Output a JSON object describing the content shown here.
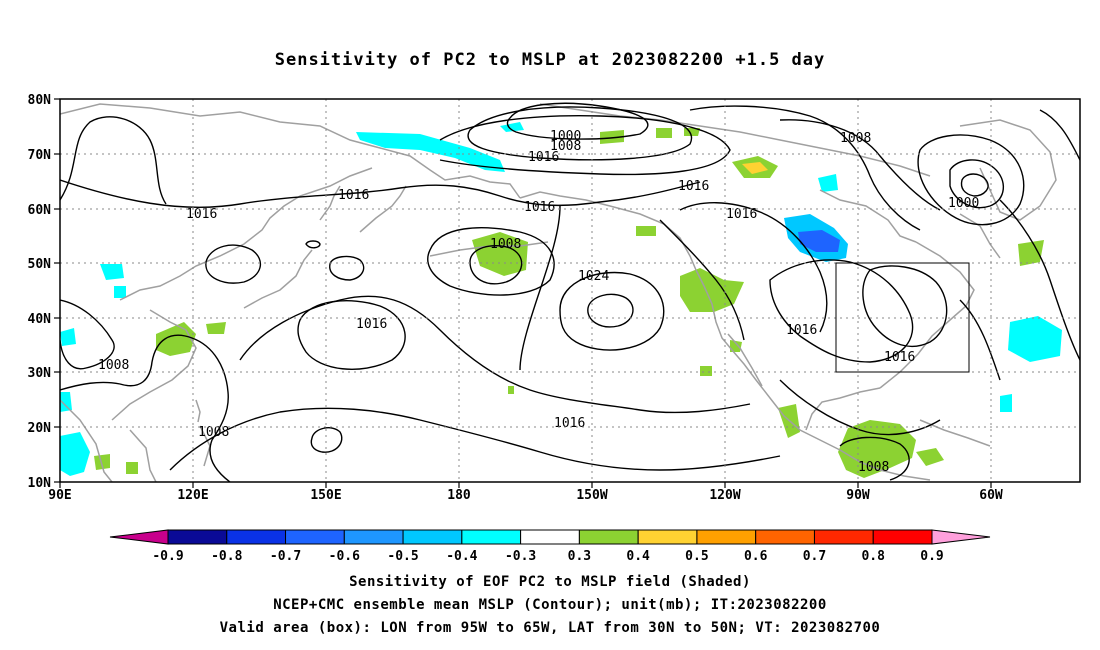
{
  "title": "Sensitivity of PC2 to MSLP at 2023082200 +1.5 day",
  "map": {
    "lat_labels": [
      "80N",
      "70N",
      "60N",
      "50N",
      "40N",
      "30N",
      "20N",
      "10N"
    ],
    "lon_labels": [
      "90E",
      "120E",
      "150E",
      "180",
      "150W",
      "120W",
      "90W",
      "60W"
    ],
    "contour_labels": [
      {
        "text": "1000"
      },
      {
        "text": "1008"
      },
      {
        "text": "1016"
      },
      {
        "text": "1008"
      },
      {
        "text": "1016"
      },
      {
        "text": "1016"
      },
      {
        "text": "1016"
      },
      {
        "text": "1016"
      },
      {
        "text": "1000"
      },
      {
        "text": "1016"
      },
      {
        "text": "1008"
      },
      {
        "text": "1024"
      },
      {
        "text": "1016"
      },
      {
        "text": "1016"
      },
      {
        "text": "1016"
      },
      {
        "text": "1008"
      },
      {
        "text": "1016"
      },
      {
        "text": "1008"
      },
      {
        "text": "1008"
      }
    ]
  },
  "colorbar": {
    "labels": [
      "-0.9",
      "-0.8",
      "-0.7",
      "-0.6",
      "-0.5",
      "-0.4",
      "-0.3",
      "0.3",
      "0.4",
      "0.5",
      "0.6",
      "0.7",
      "0.8",
      "0.9"
    ],
    "colors": [
      "#0a0a96",
      "#0a32e6",
      "#1e64ff",
      "#1e96ff",
      "#00c8ff",
      "#00ffff",
      "#ffffff",
      "#8cd232",
      "#ffd232",
      "#ffa000",
      "#ff6400",
      "#ff2800",
      "#ff0000"
    ],
    "low_end_color": "#c8008c",
    "high_end_color": "#ffa0dc"
  },
  "footer": {
    "line1": "Sensitivity of EOF PC2 to MSLP field (Shaded)",
    "line2": "NCEP+CMC ensemble mean MSLP (Contour); unit(mb); IT:2023082200",
    "line3": "Valid area (box): LON from 95W to 65W, LAT from 30N to 50N; VT: 2023082700"
  }
}
